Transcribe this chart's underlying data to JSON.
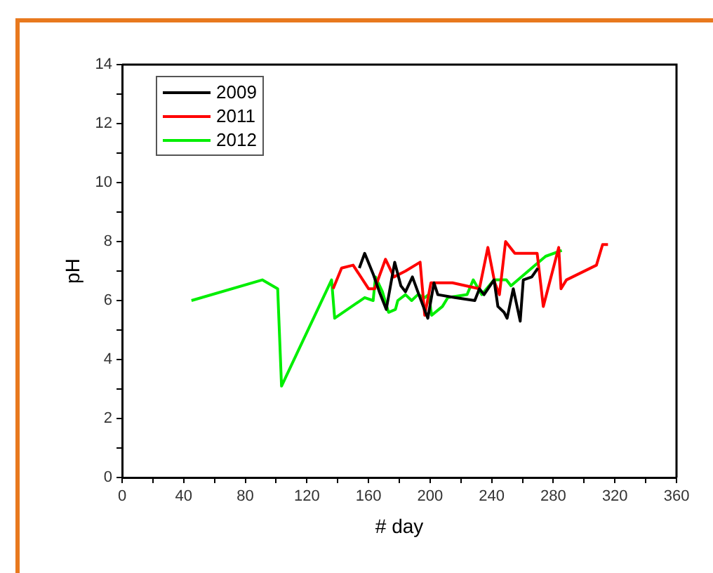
{
  "chart_data": {
    "type": "line",
    "xlabel": "# day",
    "ylabel": "pH",
    "xlim": [
      0,
      360
    ],
    "ylim": [
      0,
      14
    ],
    "xticks": [
      0,
      {
        "value": 20,
        "label": null
      },
      40,
      {
        "value": 60,
        "label": null
      },
      80,
      {
        "value": 100,
        "label": null
      },
      120,
      {
        "value": 140,
        "label": null
      },
      160,
      {
        "value": 180,
        "label": null
      },
      200,
      {
        "value": 220,
        "label": null
      },
      240,
      {
        "value": 260,
        "label": null
      },
      280,
      {
        "value": 300,
        "label": null
      },
      320,
      {
        "value": 340,
        "label": null
      },
      360
    ],
    "yticks": [
      0,
      {
        "value": 1,
        "label": null
      },
      2,
      {
        "value": 3,
        "label": null
      },
      4,
      {
        "value": 5,
        "label": null
      },
      6,
      {
        "value": 7,
        "label": null
      },
      8,
      {
        "value": 9,
        "label": null
      },
      10,
      {
        "value": 11,
        "label": null
      },
      12,
      {
        "value": 13,
        "label": null
      },
      14
    ],
    "grid": false,
    "legend": "top left",
    "marker": "none",
    "line_style": "solid",
    "series": [
      {
        "name": "2009",
        "color": "#000000",
        "x": [
          154,
          157.5,
          163,
          167,
          171.5,
          177,
          181,
          184,
          188.5,
          192,
          197,
          198.5,
          202.5,
          205,
          216,
          229,
          232,
          235,
          241.5,
          244,
          248,
          250,
          254,
          258.5,
          260.5,
          266,
          270
        ],
        "values": [
          7.1,
          7.6,
          6.9,
          6.3,
          5.7,
          7.3,
          6.5,
          6.3,
          6.8,
          6.3,
          5.6,
          5.4,
          6.6,
          6.2,
          6.1,
          6.0,
          6.4,
          6.2,
          6.7,
          5.8,
          5.6,
          5.4,
          6.4,
          5.3,
          6.7,
          6.8,
          7.1
        ]
      },
      {
        "name": "2011",
        "color": "#ff0000",
        "x": [
          137,
          142.5,
          150,
          160,
          164,
          171,
          176.5,
          184,
          193.5,
          196.5,
          200.5,
          214.5,
          232,
          237.5,
          242,
          245,
          249,
          255,
          269.5,
          273.5,
          283.5,
          285,
          288.5,
          308,
          312,
          315.5
        ],
        "values": [
          6.4,
          7.1,
          7.2,
          6.4,
          6.4,
          7.4,
          6.8,
          7.0,
          7.3,
          5.5,
          6.6,
          6.6,
          6.4,
          7.8,
          6.6,
          6.2,
          8.0,
          7.6,
          7.6,
          5.8,
          7.8,
          6.4,
          6.7,
          7.2,
          7.9,
          7.9
        ]
      },
      {
        "name": "2012",
        "color": "#00ee00",
        "x": [
          45,
          91,
          101,
          103.5,
          136,
          138,
          157.5,
          163,
          164.5,
          169,
          173,
          177.5,
          179,
          184,
          188,
          192,
          196.5,
          199,
          201,
          208,
          211.5,
          224,
          228,
          233.5,
          241.5,
          249.5,
          252.5,
          275,
          285.5
        ],
        "values": [
          6.0,
          6.7,
          6.4,
          3.1,
          6.7,
          5.4,
          6.1,
          6.0,
          6.8,
          6.3,
          5.6,
          5.7,
          6.0,
          6.2,
          6.0,
          6.2,
          6.1,
          6.2,
          5.5,
          5.8,
          6.1,
          6.2,
          6.7,
          6.2,
          6.7,
          6.7,
          6.5,
          7.5,
          7.7
        ]
      }
    ]
  }
}
